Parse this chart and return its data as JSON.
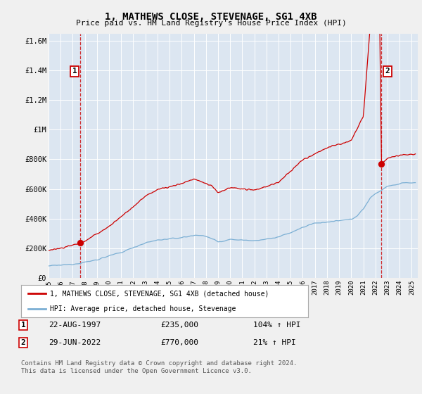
{
  "title": "1, MATHEWS CLOSE, STEVENAGE, SG1 4XB",
  "subtitle": "Price paid vs. HM Land Registry's House Price Index (HPI)",
  "ylim": [
    0,
    1650000
  ],
  "yticks": [
    0,
    200000,
    400000,
    600000,
    800000,
    1000000,
    1200000,
    1400000,
    1600000
  ],
  "ytick_labels": [
    "£0",
    "£200K",
    "£400K",
    "£600K",
    "£800K",
    "£1M",
    "£1.2M",
    "£1.4M",
    "£1.6M"
  ],
  "background_color": "#f0f0f0",
  "plot_bg_color": "#dce6f1",
  "grid_color": "#ffffff",
  "sale1_date": 1997.64,
  "sale1_price": 235000,
  "sale1_label": "1",
  "sale2_date": 2022.49,
  "sale2_price": 770000,
  "sale2_label": "2",
  "sale_color": "#cc0000",
  "hpi_color": "#7bafd4",
  "legend_label_sale": "1, MATHEWS CLOSE, STEVENAGE, SG1 4XB (detached house)",
  "legend_label_hpi": "HPI: Average price, detached house, Stevenage",
  "annotation1_date": "22-AUG-1997",
  "annotation1_price": "£235,000",
  "annotation1_hpi": "104% ↑ HPI",
  "annotation2_date": "29-JUN-2022",
  "annotation2_price": "£770,000",
  "annotation2_hpi": "21% ↑ HPI",
  "footnote": "Contains HM Land Registry data © Crown copyright and database right 2024.\nThis data is licensed under the Open Government Licence v3.0.",
  "xmin": 1995.0,
  "xmax": 2025.5
}
